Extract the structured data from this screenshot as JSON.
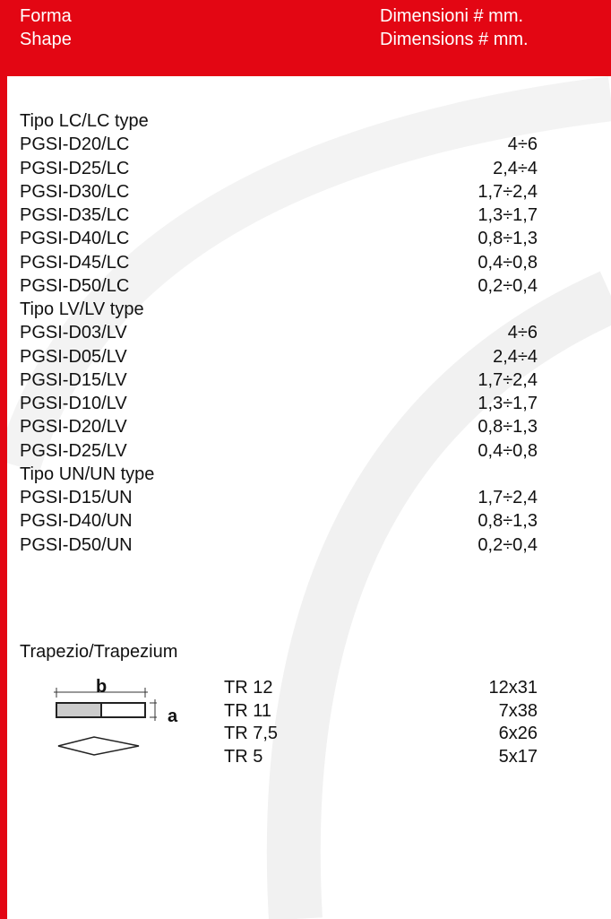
{
  "header": {
    "shape_it": "Forma",
    "shape_en": "Shape",
    "dim_it": "Dimensioni # mm.",
    "dim_en": "Dimensions # mm."
  },
  "sections": [
    {
      "title": "Tipo LC/LC type",
      "rows": [
        [
          "PGSI-D20/LC",
          "4÷6"
        ],
        [
          "PGSI-D25/LC",
          "2,4÷4"
        ],
        [
          "PGSI-D30/LC",
          "1,7÷2,4"
        ],
        [
          "PGSI-D35/LC",
          "1,3÷1,7"
        ],
        [
          "PGSI-D40/LC",
          "0,8÷1,3"
        ],
        [
          "PGSI-D45/LC",
          "0,4÷0,8"
        ],
        [
          "PGSI-D50/LC",
          "0,2÷0,4"
        ]
      ]
    },
    {
      "title": "Tipo LV/LV type",
      "rows": [
        [
          "PGSI-D03/LV",
          "4÷6"
        ],
        [
          "PGSI-D05/LV",
          "2,4÷4"
        ],
        [
          "PGSI-D15/LV",
          "1,7÷2,4"
        ],
        [
          "PGSI-D10/LV",
          "1,3÷1,7"
        ],
        [
          "PGSI-D20/LV",
          "0,8÷1,3"
        ],
        [
          "PGSI-D25/LV",
          "0,4÷0,8"
        ]
      ]
    },
    {
      "title": "Tipo UN/UN type",
      "rows": [
        [
          "PGSI-D15/UN",
          "1,7÷2,4"
        ],
        [
          "PGSI-D40/UN",
          "0,8÷1,3"
        ],
        [
          "PGSI-D50/UN",
          "0,2÷0,4"
        ]
      ]
    }
  ],
  "trapezium": {
    "title": "Trapezio/Trapezium",
    "label_b": "b",
    "label_a": "a",
    "rows": [
      [
        "TR 12",
        "12x31"
      ],
      [
        "TR 11",
        "7x38"
      ],
      [
        "TR 7,5",
        "6x26"
      ],
      [
        "TR 5",
        "5x17"
      ]
    ]
  }
}
